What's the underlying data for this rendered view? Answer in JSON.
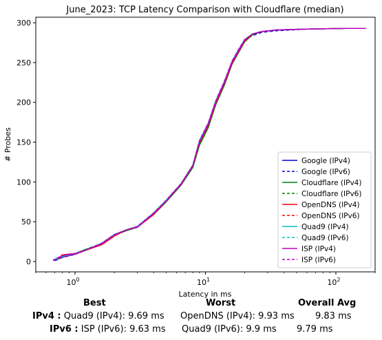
{
  "chart_data": {
    "type": "line",
    "title": "June_2023: TCP Latency Comparison with Cloudflare (median)",
    "xlabel": "Latency in ms",
    "ylabel": "# Probes",
    "xscale": "log",
    "xlim": [
      0.5,
      200
    ],
    "ylim": [
      -13,
      307
    ],
    "x_ticks": [
      1,
      10,
      100
    ],
    "x_tick_labels": [
      "10^0",
      "10^1",
      "10^2"
    ],
    "y_ticks": [
      0,
      50,
      100,
      150,
      200,
      250,
      300
    ],
    "y_tick_labels": [
      "0",
      "50",
      "100",
      "150",
      "200",
      "250",
      "300"
    ],
    "grid": false,
    "legend_position": "lower-right",
    "series": [
      {
        "name": "Google (IPv4)",
        "color": "#0000cc",
        "dash": "solid",
        "x": [
          0.68,
          0.8,
          1.0,
          1.2,
          1.6,
          2.0,
          2.5,
          3.0,
          4.0,
          5.0,
          6.5,
          8.0,
          9.0,
          10.5,
          12.0,
          14.0,
          16.0,
          18.0,
          20.0,
          23.0,
          27.0,
          35.0,
          60.0,
          120.0,
          170.0
        ],
        "y": [
          2,
          6,
          10,
          14,
          22,
          33,
          40,
          43,
          60,
          76,
          97,
          120,
          150,
          172,
          200,
          225,
          250,
          265,
          278,
          286,
          289,
          291,
          292,
          293,
          293
        ]
      },
      {
        "name": "Google (IPv6)",
        "color": "#0000cc",
        "dash": "dashed",
        "x": [
          0.7,
          0.8,
          1.0,
          1.2,
          1.6,
          2.0,
          2.5,
          3.0,
          4.0,
          5.0,
          6.5,
          8.0,
          9.0,
          10.5,
          12.0,
          14.0,
          16.0,
          18.0,
          20.0,
          23.0,
          27.0,
          35.0,
          60.0,
          120.0,
          170.0
        ],
        "y": [
          1,
          5,
          9,
          14,
          23,
          34,
          40,
          44,
          61,
          77,
          98,
          121,
          151,
          173,
          201,
          226,
          251,
          266,
          279,
          284,
          288,
          290,
          292,
          293,
          293
        ]
      },
      {
        "name": "Cloudflare (IPv4)",
        "color": "#008000",
        "dash": "solid",
        "x": [
          0.75,
          0.85,
          1.0,
          1.2,
          1.6,
          2.0,
          2.5,
          3.0,
          4.0,
          5.0,
          6.5,
          8.0,
          9.0,
          10.5,
          12.0,
          14.0,
          16.0,
          18.0,
          20.0,
          23.0,
          27.0,
          35.0,
          60.0,
          120.0,
          170.0
        ],
        "y": [
          4,
          8,
          10,
          15,
          22,
          33,
          39,
          43,
          59,
          75,
          96,
          118,
          146,
          168,
          197,
          222,
          248,
          263,
          276,
          285,
          289,
          291,
          292,
          293,
          293
        ]
      },
      {
        "name": "Cloudflare (IPv6)",
        "color": "#008000",
        "dash": "dashed",
        "x": [
          0.75,
          0.85,
          1.0,
          1.2,
          1.6,
          2.0,
          2.5,
          3.0,
          4.0,
          5.0,
          6.5,
          8.0,
          9.0,
          10.5,
          12.0,
          14.0,
          16.0,
          18.0,
          20.0,
          23.0,
          27.0,
          35.0,
          60.0,
          120.0,
          170.0
        ],
        "y": [
          3,
          7,
          10,
          15,
          23,
          33,
          40,
          44,
          60,
          76,
          97,
          119,
          148,
          170,
          199,
          224,
          250,
          265,
          278,
          286,
          289,
          291,
          292,
          293,
          293
        ]
      },
      {
        "name": "OpenDNS (IPv4)",
        "color": "#ff0000",
        "dash": "solid",
        "x": [
          0.78,
          0.85,
          1.0,
          1.2,
          1.6,
          2.0,
          2.5,
          3.0,
          4.0,
          5.0,
          6.5,
          8.0,
          9.0,
          10.5,
          12.0,
          14.0,
          16.0,
          18.0,
          20.0,
          23.0,
          27.0,
          35.0,
          60.0,
          120.0,
          170.0
        ],
        "y": [
          8,
          9,
          10,
          14,
          21,
          32,
          40,
          43,
          59,
          76,
          97,
          120,
          149,
          171,
          199,
          224,
          249,
          264,
          277,
          286,
          289,
          291,
          292,
          293,
          293
        ]
      },
      {
        "name": "OpenDNS (IPv6)",
        "color": "#ff0000",
        "dash": "dashed",
        "x": [
          0.78,
          0.85,
          1.0,
          1.2,
          1.6,
          2.0,
          2.5,
          3.0,
          4.0,
          5.0,
          6.5,
          8.0,
          9.0,
          10.5,
          12.0,
          14.0,
          16.0,
          18.0,
          20.0,
          23.0,
          27.0,
          35.0,
          60.0,
          120.0,
          170.0
        ],
        "y": [
          7,
          8,
          10,
          14,
          22,
          33,
          40,
          44,
          60,
          76,
          98,
          121,
          150,
          172,
          200,
          225,
          250,
          265,
          278,
          286,
          289,
          291,
          292,
          293,
          293
        ]
      },
      {
        "name": "Quad9 (IPv4)",
        "color": "#00bfbf",
        "dash": "solid",
        "x": [
          0.7,
          0.8,
          1.0,
          1.2,
          1.6,
          2.0,
          2.5,
          3.0,
          4.0,
          5.0,
          6.5,
          8.0,
          9.0,
          10.5,
          12.0,
          14.0,
          16.0,
          18.0,
          20.0,
          23.0,
          27.0,
          35.0,
          60.0,
          120.0,
          170.0
        ],
        "y": [
          3,
          7,
          10,
          14,
          23,
          34,
          40,
          44,
          61,
          77,
          98,
          121,
          152,
          174,
          202,
          227,
          252,
          267,
          279,
          286,
          289,
          291,
          292,
          293,
          293
        ]
      },
      {
        "name": "Quad9 (IPv6)",
        "color": "#00bfbf",
        "dash": "dashed",
        "x": [
          0.7,
          0.8,
          1.0,
          1.2,
          1.6,
          2.0,
          2.5,
          3.0,
          4.0,
          5.0,
          6.5,
          8.0,
          9.0,
          10.5,
          12.0,
          14.0,
          16.0,
          18.0,
          20.0,
          23.0,
          27.0,
          35.0,
          60.0,
          120.0,
          170.0
        ],
        "y": [
          2,
          6,
          10,
          14,
          23,
          34,
          40,
          44,
          61,
          77,
          98,
          121,
          151,
          173,
          201,
          226,
          251,
          266,
          279,
          286,
          289,
          291,
          292,
          293,
          293
        ]
      },
      {
        "name": "ISP (IPv4)",
        "color": "#bf00bf",
        "dash": "solid",
        "x": [
          0.72,
          0.82,
          1.0,
          1.2,
          1.6,
          2.0,
          2.5,
          3.0,
          4.0,
          5.0,
          6.5,
          8.0,
          9.0,
          10.5,
          12.0,
          14.0,
          16.0,
          18.0,
          20.0,
          23.0,
          27.0,
          35.0,
          60.0,
          120.0,
          170.0
        ],
        "y": [
          4,
          8,
          10,
          14,
          22,
          33,
          40,
          43,
          60,
          76,
          97,
          120,
          150,
          172,
          200,
          225,
          250,
          265,
          278,
          286,
          289,
          291,
          292,
          293,
          293
        ]
      },
      {
        "name": "ISP (IPv6)",
        "color": "#bf00bf",
        "dash": "dashed",
        "x": [
          0.68,
          0.78,
          1.0,
          1.2,
          1.6,
          2.0,
          2.5,
          3.0,
          4.0,
          5.0,
          6.5,
          8.0,
          9.0,
          10.5,
          12.0,
          14.0,
          16.0,
          18.0,
          20.0,
          23.0,
          27.0,
          35.0,
          60.0,
          120.0,
          170.0
        ],
        "y": [
          1,
          5,
          9,
          14,
          23,
          34,
          40,
          44,
          61,
          77,
          98,
          121,
          152,
          174,
          202,
          227,
          252,
          267,
          279,
          286,
          289,
          291,
          292,
          293,
          293
        ]
      }
    ]
  },
  "stats": {
    "headers": {
      "best": "Best",
      "worst": "Worst",
      "avg": "Overall Avg"
    },
    "ipv4": {
      "label": "IPv4 :",
      "best": "Quad9 (IPv4): 9.69 ms",
      "worst": "OpenDNS (IPv4): 9.93 ms",
      "avg": "9.83 ms"
    },
    "ipv6": {
      "label": "IPv6 :",
      "best": "ISP (IPv6): 9.63 ms",
      "worst": "Quad9 (IPv6): 9.9 ms",
      "avg": "9.79 ms"
    }
  }
}
